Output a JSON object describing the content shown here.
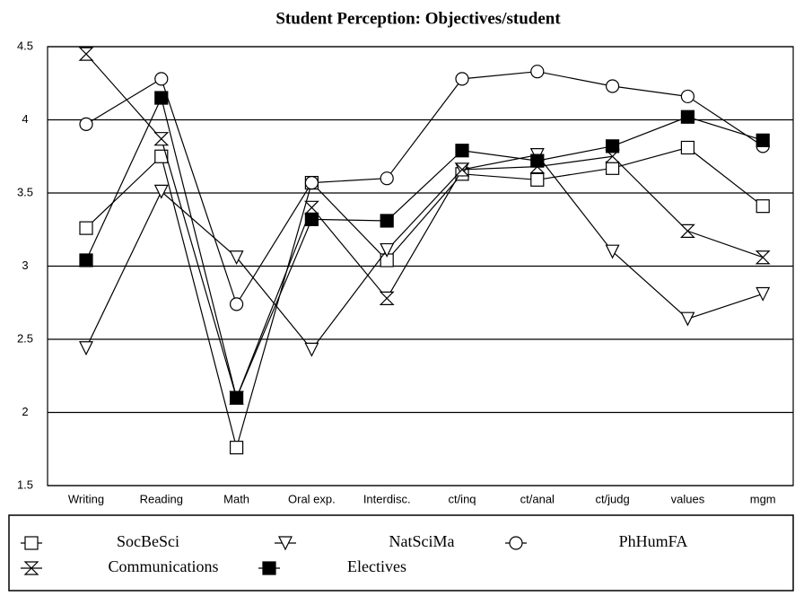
{
  "chart_data": {
    "type": "line",
    "title": "Student Perception: Objectives/student",
    "categories": [
      "Writing",
      "Reading",
      "Math",
      "Oral exp.",
      "Interdisc.",
      "ct/inq",
      "ct/anal",
      "ct/judg",
      "values",
      "mgm"
    ],
    "ylim": [
      1.5,
      4.5
    ],
    "yticks": [
      1.5,
      2,
      2.5,
      3,
      3.5,
      4,
      4.5
    ],
    "grid": true,
    "legend": "bottom",
    "series": [
      {
        "name": "SocBeSci",
        "color": "#000000",
        "marker": "square",
        "values": [
          3.26,
          3.75,
          1.76,
          3.57,
          3.04,
          3.63,
          3.59,
          3.67,
          3.81,
          3.41
        ]
      },
      {
        "name": "NatSciMa",
        "color": "#000000",
        "marker": "triangle-down",
        "values": [
          2.44,
          3.51,
          3.06,
          2.43,
          3.11,
          3.66,
          3.76,
          3.1,
          2.64,
          2.81
        ]
      },
      {
        "name": "PhHumFA",
        "color": "#000000",
        "marker": "circle",
        "values": [
          3.97,
          4.28,
          2.74,
          3.57,
          3.6,
          4.28,
          4.33,
          4.23,
          4.16,
          3.82
        ]
      },
      {
        "name": "Communications",
        "color": "#000000",
        "marker": "hourglass",
        "values": [
          4.45,
          3.87,
          2.1,
          3.4,
          2.78,
          3.66,
          3.68,
          3.75,
          3.24,
          3.06
        ]
      },
      {
        "name": "Electives",
        "color": "#000000",
        "marker": "filled-square",
        "values": [
          3.04,
          4.15,
          2.1,
          3.32,
          3.31,
          3.79,
          3.72,
          3.82,
          4.02,
          3.86
        ]
      }
    ]
  }
}
